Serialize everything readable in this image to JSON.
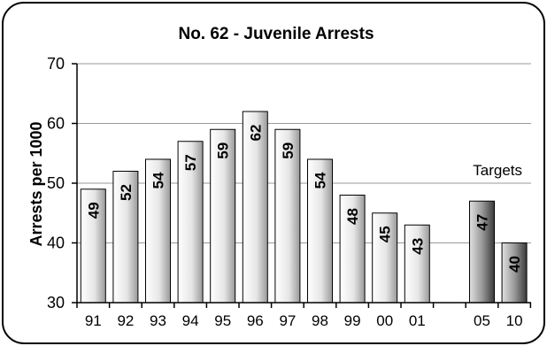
{
  "chart_data": {
    "type": "bar",
    "title": "No. 62 - Juvenile Arrests",
    "ylabel": "Arrests per 1000",
    "xlabel": "",
    "ylim": [
      30,
      70
    ],
    "yticks": [
      "30",
      "40",
      "50",
      "60",
      "70"
    ],
    "grid": true,
    "categories": [
      "91",
      "92",
      "93",
      "94",
      "95",
      "96",
      "97",
      "98",
      "99",
      "00",
      "01",
      "05",
      "10"
    ],
    "values": [
      49,
      52,
      54,
      57,
      59,
      62,
      59,
      54,
      48,
      45,
      43,
      47,
      40
    ],
    "data_labels": [
      "49",
      "52",
      "54",
      "57",
      "59",
      "62",
      "59",
      "54",
      "48",
      "45",
      "43",
      "47",
      "40"
    ],
    "target_categories": [
      "05",
      "10"
    ],
    "annotation": "Targets",
    "colors": {
      "actual_light": "#ffffff",
      "actual_dark": "#9a9a9a",
      "target_light": "#e0e0e0",
      "target_dark": "#3a3a3a",
      "gridline": "#9a9a9a",
      "border": "#000000"
    }
  }
}
